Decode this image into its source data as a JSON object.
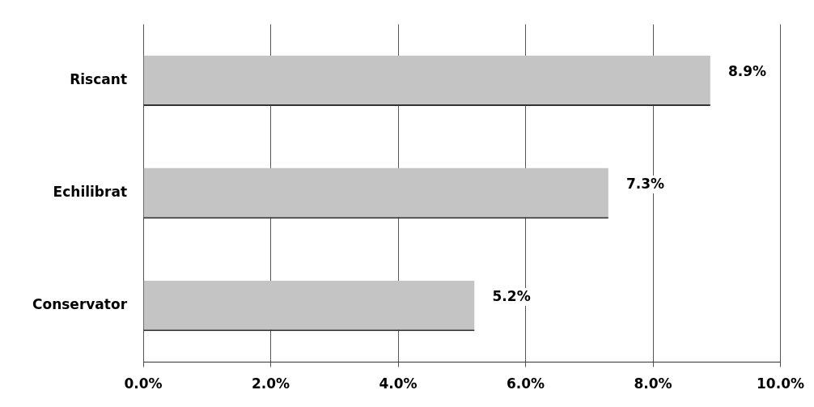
{
  "chart_data": {
    "type": "bar",
    "orientation": "horizontal",
    "categories": [
      "Riscant",
      "Echilibrat",
      "Conservator"
    ],
    "values": [
      8.9,
      7.3,
      5.2
    ],
    "color": "#c4c4c4",
    "value_labels": [
      "8.9%",
      "7.3%",
      "5.2%"
    ],
    "xlim": [
      0,
      10
    ],
    "xticks": [
      {
        "value": 0,
        "label": "0.0%"
      },
      {
        "value": 2,
        "label": "2.0%"
      },
      {
        "value": 4,
        "label": "4.0%"
      },
      {
        "value": 6,
        "label": "6.0%"
      },
      {
        "value": 8,
        "label": "8.0%"
      },
      {
        "value": 10,
        "label": "10.0%"
      }
    ],
    "grid": "x",
    "legend": false
  }
}
